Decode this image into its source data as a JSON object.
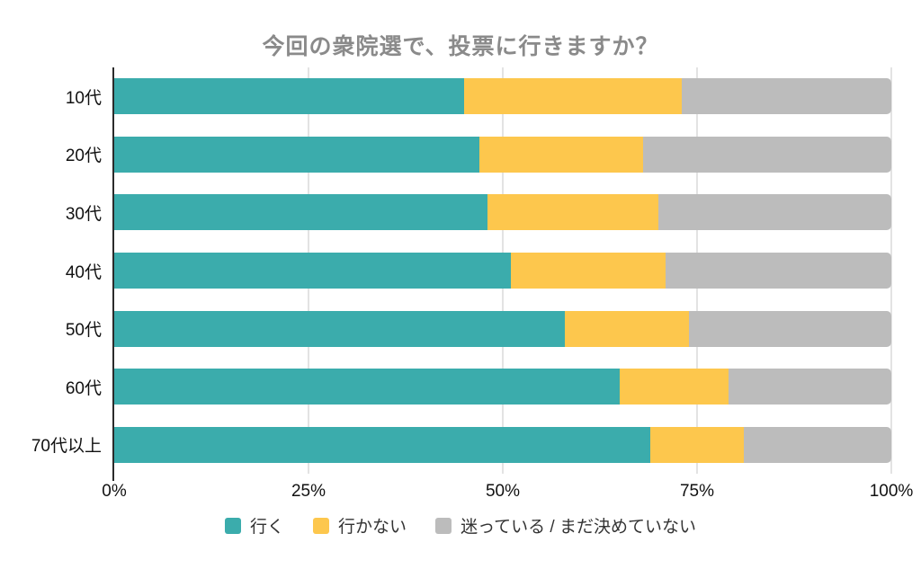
{
  "title": "今回の衆院選で、投票に行きますか？",
  "colors": {
    "series_go": "#3BACAC",
    "series_wont_go": "#FDC74D",
    "series_undecided": "#BCBCBC",
    "title_text": "#8a8a8a",
    "axis_line": "#2b2b2b",
    "gridline": "#e3e3e3",
    "tick_text": "#111111",
    "legend_text": "#333333"
  },
  "chart_data": {
    "type": "bar",
    "orientation": "horizontal",
    "stacked": true,
    "title": "今回の衆院選で、投票に行きますか？",
    "categories": [
      "10代",
      "20代",
      "30代",
      "40代",
      "50代",
      "60代",
      "70代以上"
    ],
    "series": [
      {
        "key": "go",
        "name": "行く",
        "color": "#3BACAC",
        "values": [
          45,
          47,
          48,
          51,
          58,
          65,
          69
        ]
      },
      {
        "key": "wont-go",
        "name": "行かない",
        "color": "#FDC74D",
        "values": [
          28,
          21,
          22,
          20,
          16,
          14,
          12
        ]
      },
      {
        "key": "undecided",
        "name": "迷っている / まだ決めていない",
        "color": "#BCBCBC",
        "values": [
          27,
          32,
          30,
          29,
          26,
          21,
          19
        ]
      }
    ],
    "x_ticks": [
      "0%",
      "25%",
      "50%",
      "75%",
      "100%"
    ],
    "xlim": [
      0,
      100
    ],
    "grid": true,
    "legend_position": "bottom",
    "units": "percent"
  }
}
